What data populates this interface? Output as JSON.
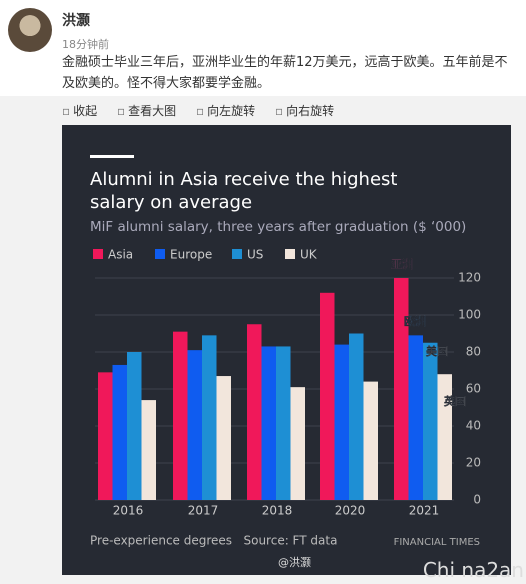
{
  "post": {
    "user": "洪灏",
    "time": "18分钟前",
    "text": "金融硕士毕业三年后，亚洲毕业生的年薪12万美元，远高于欧美。五年前是不及欧美的。怪不得大家都要学金融。"
  },
  "toolbar": [
    "收起",
    "查看大图",
    "向左旋转",
    "向右旋转"
  ],
  "chart_data": {
    "type": "bar",
    "title": [
      "Alumni in Asia receive the highest",
      "salary on average"
    ],
    "subtitle": "MiF alumni salary, three years after graduation ($ ‘000)",
    "categories": [
      "2016",
      "2017",
      "2018",
      "2020",
      "2021"
    ],
    "series": [
      {
        "name": "Asia",
        "color": "#f0185a",
        "values": [
          69,
          91,
          95,
          112,
          120
        ]
      },
      {
        "name": "Europe",
        "color": "#0f5cf0",
        "values": [
          73,
          81,
          83,
          84,
          89
        ]
      },
      {
        "name": "US",
        "color": "#1e8fd4",
        "values": [
          80,
          89,
          83,
          90,
          85
        ]
      },
      {
        "name": "UK",
        "color": "#f2e6dc",
        "values": [
          54,
          67,
          61,
          64,
          68
        ]
      }
    ],
    "ylim": [
      0,
      120
    ],
    "yticks": [
      0,
      20,
      40,
      60,
      80,
      100,
      120
    ],
    "grid": true,
    "annotations": [
      "亚洲",
      "欧洲",
      "美国",
      "英国"
    ],
    "source": "Pre-experience degrees   Source: FT data",
    "brand": "FINANCIAL TIMES",
    "watermark": "@洪灏"
  },
  "corner_watermark": "Chi na2an"
}
